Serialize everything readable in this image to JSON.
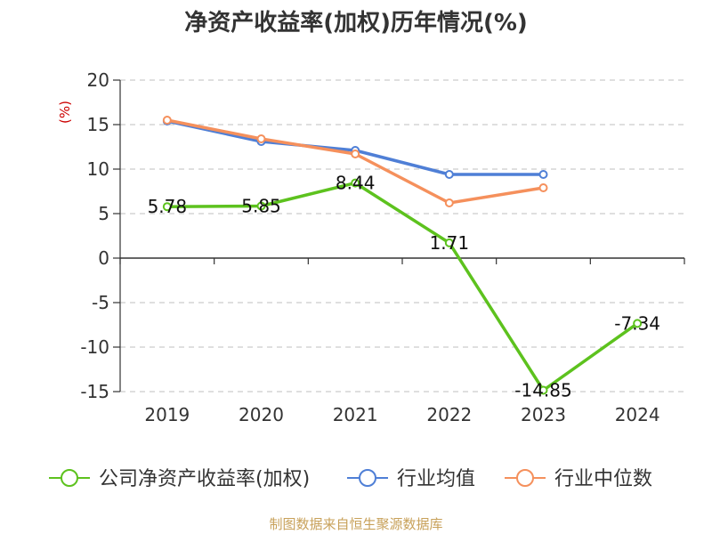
{
  "chart_data": {
    "type": "line",
    "title": "净资产收益率(加权)历年情况(%)",
    "ylabel": "(%)",
    "categories": [
      "2019",
      "2020",
      "2021",
      "2022",
      "2023",
      "2024"
    ],
    "ylim": [
      -15,
      20
    ],
    "yticks": [
      20,
      15,
      10,
      5,
      0,
      -5,
      -10,
      -15
    ],
    "grid": true,
    "legend_position": "bottom",
    "series": [
      {
        "name": "公司净资产收益率(加权)",
        "color": "#5dc21e",
        "values": [
          5.78,
          5.85,
          8.44,
          1.71,
          -14.85,
          -7.34
        ],
        "labels": [
          "5.78",
          "5.85",
          "8.44",
          "1.71",
          "-14.85",
          "-7.34"
        ]
      },
      {
        "name": "行业均值",
        "color": "#4f7fd6",
        "values": [
          15.4,
          13.1,
          12.1,
          9.4,
          9.4,
          null
        ]
      },
      {
        "name": "行业中位数",
        "color": "#f5905c",
        "values": [
          15.5,
          13.4,
          11.7,
          6.2,
          7.9,
          null
        ]
      }
    ],
    "source": "制图数据来自恒生聚源数据库"
  }
}
